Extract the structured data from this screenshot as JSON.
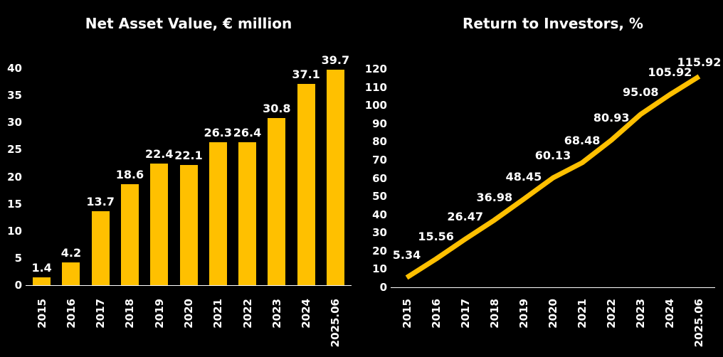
{
  "page": {
    "background": "#000000",
    "text_color": "#ffffff",
    "accent_color": "#FFC000",
    "axis_color": "#ffffff"
  },
  "chart_data": [
    {
      "type": "bar",
      "title": "Net Asset Value, € million",
      "categories": [
        "2015",
        "2016",
        "2017",
        "2018",
        "2019",
        "2020",
        "2021",
        "2022",
        "2023",
        "2024",
        "2025.06"
      ],
      "values": [
        1.4,
        4.2,
        13.7,
        18.6,
        22.4,
        22.1,
        26.3,
        26.4,
        30.8,
        37.1,
        39.7
      ],
      "labels": [
        "1.4",
        "4.2",
        "13.7",
        "18.6",
        "22.4",
        "22.1",
        "26.3",
        "26.4",
        "30.8",
        "37.1",
        "39.7"
      ],
      "xlabel": "",
      "ylabel": "",
      "ylim": [
        0,
        40
      ],
      "ytick_step": 5,
      "grid": false,
      "legend": null,
      "bar_color": "#FFC000",
      "label_color": "#ffffff"
    },
    {
      "type": "line",
      "title": "Return to Investors, %",
      "categories": [
        "2015",
        "2016",
        "2017",
        "2018",
        "2019",
        "2020",
        "2021",
        "2022",
        "2023",
        "2024",
        "2025.06"
      ],
      "values": [
        5.34,
        15.56,
        26.47,
        36.98,
        48.45,
        60.13,
        68.48,
        80.93,
        95.08,
        105.92,
        115.92
      ],
      "labels": [
        "5.34",
        "15.56",
        "26.47",
        "36.98",
        "48.45",
        "60.13",
        "68.48",
        "80.93",
        "95.08",
        "105.92",
        "115.92"
      ],
      "xlabel": "",
      "ylabel": "",
      "ylim": [
        0,
        120
      ],
      "ytick_step": 10,
      "grid": false,
      "legend": null,
      "line_color": "#FFC000",
      "label_color": "#ffffff"
    }
  ]
}
